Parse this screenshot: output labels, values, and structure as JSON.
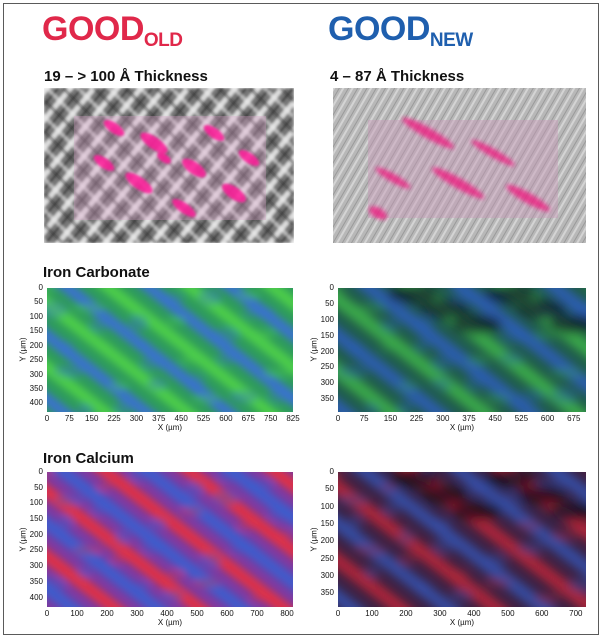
{
  "headers": {
    "old": {
      "main": "GOOD",
      "sub": "OLD",
      "color": "#e0284a"
    },
    "new": {
      "main": "GOOD",
      "sub": "NEW",
      "color": "#1f5fae"
    }
  },
  "captions": {
    "old_thickness": "19 – > 100 Å Thickness",
    "new_thickness": "4 – 87 Å Thickness",
    "iron_carbonate": "Iron Carbonate",
    "iron_calcium": "Iron Calcium"
  },
  "axes": {
    "xlabel": "X (µm)",
    "ylabel": "Y (µm)",
    "carbonate_old": {
      "x_ticks": [
        "0",
        "75",
        "150",
        "225",
        "300",
        "375",
        "450",
        "525",
        "600",
        "675",
        "750",
        "825"
      ],
      "y_ticks": [
        "0",
        "50",
        "100",
        "150",
        "200",
        "250",
        "300",
        "350",
        "400"
      ]
    },
    "carbonate_new": {
      "x_ticks": [
        "0",
        "75",
        "150",
        "225",
        "300",
        "375",
        "450",
        "525",
        "600",
        "675"
      ],
      "y_ticks": [
        "0",
        "50",
        "100",
        "150",
        "200",
        "250",
        "300",
        "350"
      ]
    },
    "calcium_old": {
      "x_ticks": [
        "0",
        "100",
        "200",
        "300",
        "400",
        "500",
        "600",
        "700",
        "800"
      ],
      "y_ticks": [
        "0",
        "50",
        "100",
        "150",
        "200",
        "250",
        "300",
        "350",
        "400"
      ]
    },
    "calcium_new": {
      "x_ticks": [
        "0",
        "100",
        "200",
        "300",
        "400",
        "500",
        "600",
        "700"
      ],
      "y_ticks": [
        "0",
        "50",
        "100",
        "150",
        "200",
        "250",
        "300",
        "350"
      ]
    }
  }
}
